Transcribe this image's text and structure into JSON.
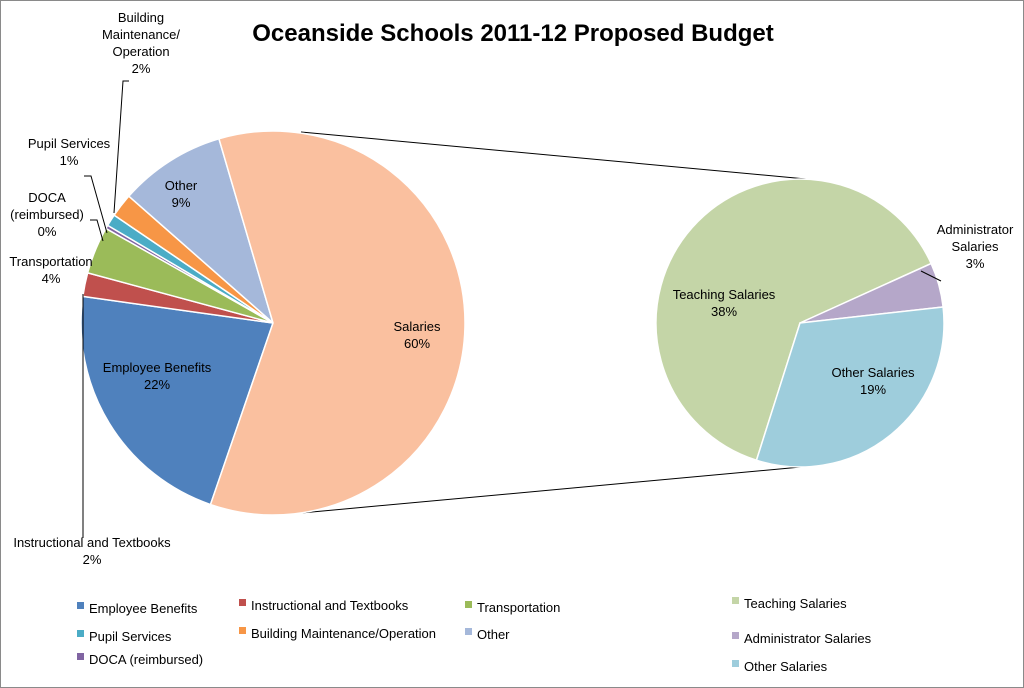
{
  "chart_data": {
    "type": "pie",
    "subtype": "pie-of-pie",
    "title": "Oceanside Schools 2011-12 Proposed Budget",
    "main_pie": [
      {
        "name": "Employee Benefits",
        "value": 22,
        "label": "22%",
        "color": "#4f81bd"
      },
      {
        "name": "Instructional and Textbooks",
        "value": 2,
        "label": "2%",
        "color": "#c0504d"
      },
      {
        "name": "Transportation",
        "value": 4,
        "label": "4%",
        "color": "#9bbb59"
      },
      {
        "name": "DOCA (reimbursed)",
        "value": 0.3,
        "label": "0%",
        "color": "#8064a2"
      },
      {
        "name": "Pupil Services",
        "value": 1,
        "label": "1%",
        "color": "#4bacc6"
      },
      {
        "name": "Building Maintenance/Operation",
        "value": 2,
        "label": "2%",
        "color": "#f79646"
      },
      {
        "name": "Other",
        "value": 9,
        "label": "9%",
        "color": "#a5b8da"
      },
      {
        "name": "Salaries",
        "value": 60,
        "label": "60%",
        "color": "#fac09f"
      }
    ],
    "secondary_pie": [
      {
        "name": "Teaching Salaries",
        "value": 38,
        "label": "38%",
        "color": "#c4d5a7"
      },
      {
        "name": "Administrator Salaries",
        "value": 3,
        "label": "3%",
        "color": "#b5a7c9"
      },
      {
        "name": "Other Salaries",
        "value": 19,
        "label": "19%",
        "color": "#9ecddc"
      }
    ],
    "data_labels": {
      "Building Maintenance/Operation": [
        "Building",
        "Maintenance/",
        "Operation",
        "2%"
      ],
      "Pupil Services": [
        "Pupil Services",
        "1%"
      ],
      "DOCA (reimbursed)": [
        "DOCA",
        "(reimbursed)",
        "0%"
      ],
      "Transportation": [
        "Transportation",
        "4%"
      ],
      "Other": [
        "Other",
        "9%"
      ],
      "Salaries": [
        "Salaries",
        "60%"
      ],
      "Employee Benefits": [
        "Employee Benefits",
        "22%"
      ],
      "Instructional and Textbooks": [
        "Instructional and Textbooks",
        "2%"
      ],
      "Teaching Salaries": [
        "Teaching Salaries",
        "38%"
      ],
      "Administrator Salaries": [
        "Administrator",
        "Salaries",
        "3%"
      ],
      "Other Salaries": [
        "Other Salaries",
        "19%"
      ]
    },
    "legend": {
      "placement": "bottom",
      "entries": [
        "Employee Benefits",
        "Instructional and Textbooks",
        "Transportation",
        "Pupil Services",
        "Building Maintenance/Operation",
        "Other",
        "DOCA (reimbursed)",
        "Teaching Salaries",
        "Administrator Salaries",
        "Other Salaries"
      ]
    }
  }
}
